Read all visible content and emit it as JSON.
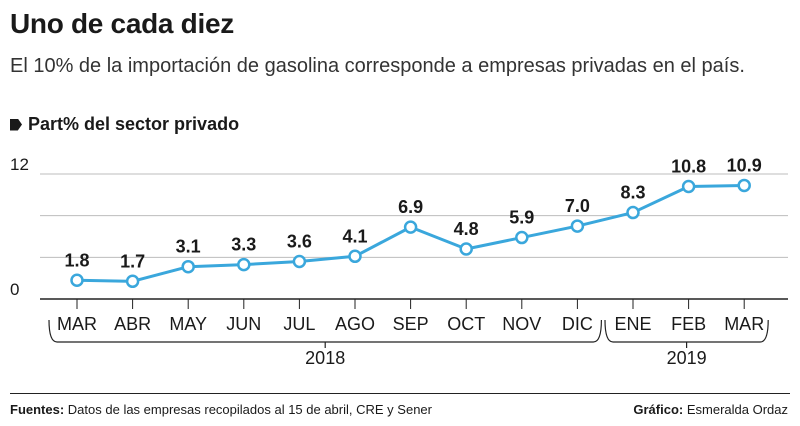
{
  "header": {
    "title": "Uno de cada diez",
    "subtitle": "El 10% de la importación de gasolina corresponde a empresas privadas en el país.",
    "series_label": "Part% del sector privado"
  },
  "footer": {
    "sources_label": "Fuentes:",
    "sources_text": "Datos de las empresas recopilados al 15 de abril, CRE y Sener",
    "credit_label": "Gráfico:",
    "credit_text": "Esmeralda Ordaz"
  },
  "colors": {
    "line": "#3aa7dc",
    "marker_fill": "#ffffff",
    "grid": "#bdbdbd",
    "axis": "#222222",
    "text": "#1a1a1a"
  },
  "chart_data": {
    "type": "line",
    "title": "Part% del sector privado",
    "categories": [
      "MAR",
      "ABR",
      "MAY",
      "JUN",
      "JUL",
      "AGO",
      "SEP",
      "OCT",
      "NOV",
      "DIC",
      "ENE",
      "FEB",
      "MAR"
    ],
    "series": [
      {
        "name": "Part% del sector privado",
        "values": [
          1.8,
          1.7,
          3.1,
          3.3,
          3.6,
          4.1,
          6.9,
          4.8,
          5.9,
          7.0,
          8.3,
          10.8,
          10.9
        ]
      }
    ],
    "value_labels": [
      "1.8",
      "1.7",
      "3.1",
      "3.3",
      "3.6",
      "4.1",
      "6.9",
      "4.8",
      "5.9",
      "7.0",
      "8.3",
      "10.8",
      "10.9"
    ],
    "ylim": [
      0,
      12
    ],
    "yticks": [
      0,
      12
    ],
    "ytick_labels": [
      "0",
      "12"
    ],
    "gridlines": [
      4,
      8,
      12
    ],
    "year_groups": [
      {
        "label": "2018",
        "start": 0,
        "end": 9
      },
      {
        "label": "2019",
        "start": 10,
        "end": 12
      }
    ],
    "xlabel": "",
    "ylabel": ""
  }
}
